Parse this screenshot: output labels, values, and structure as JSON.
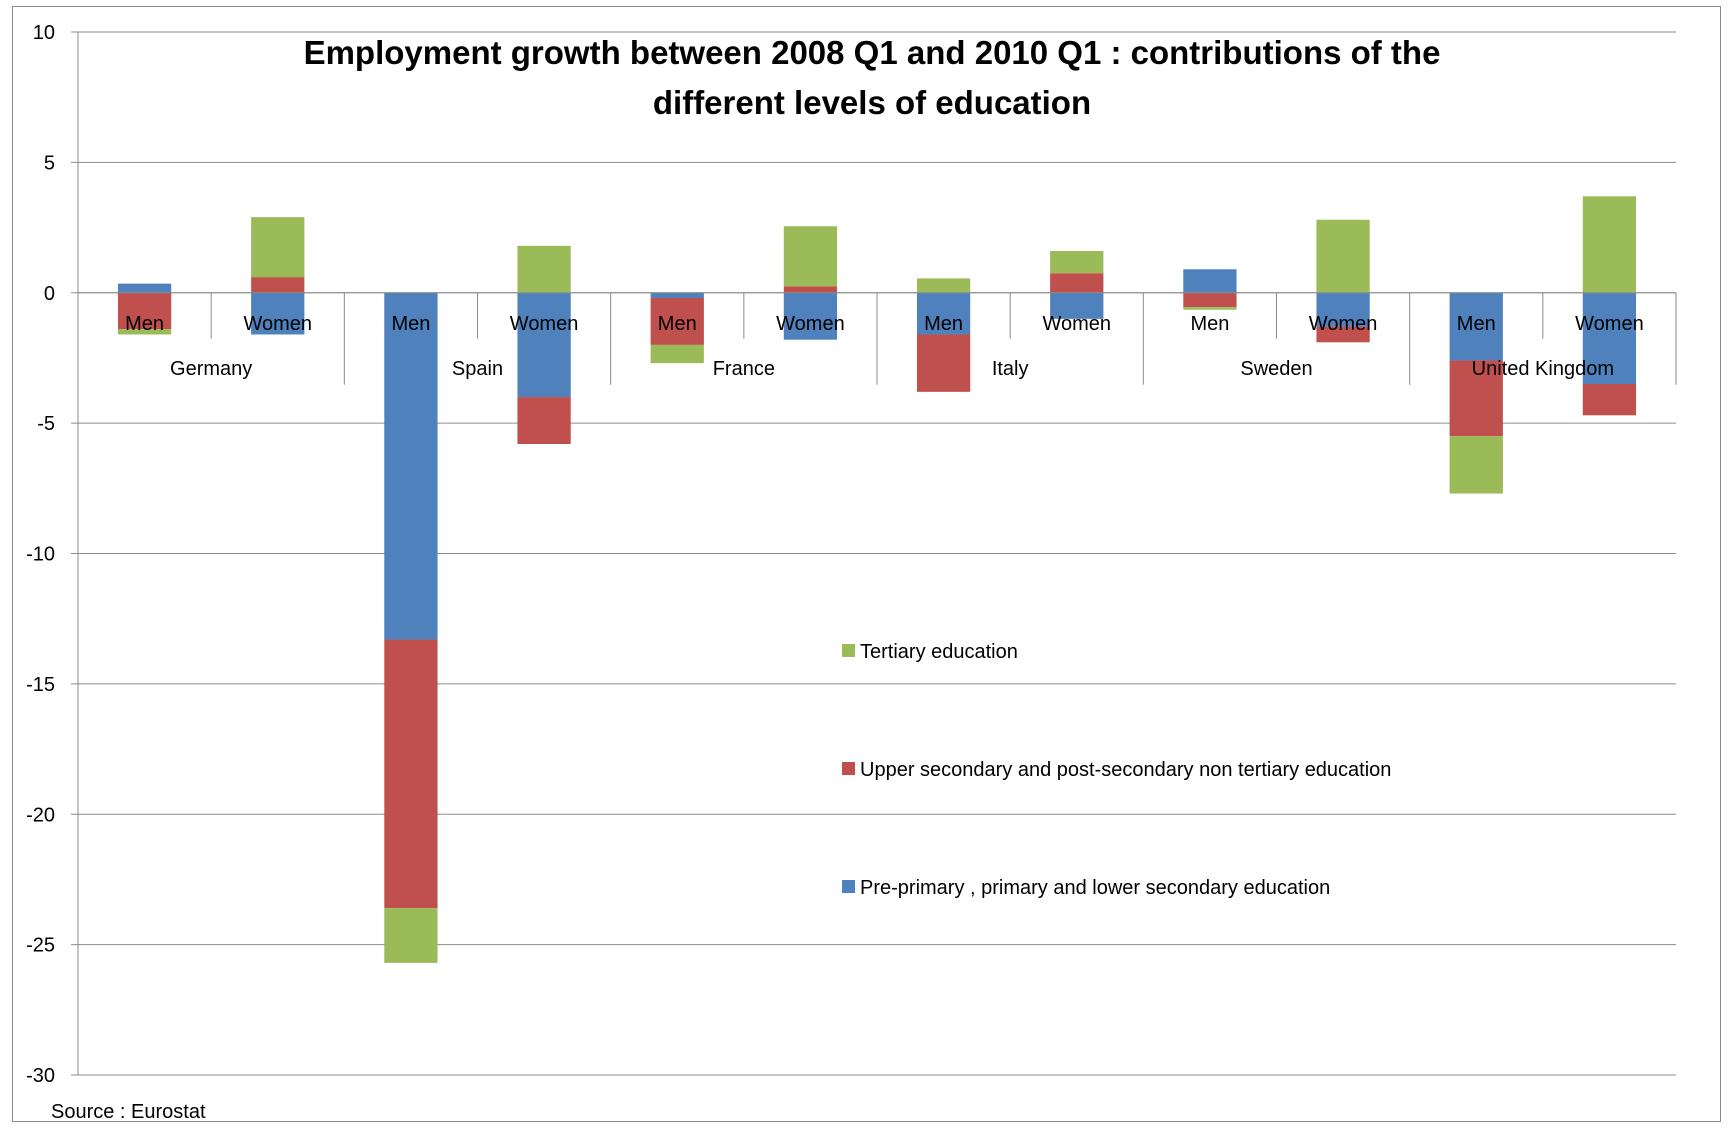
{
  "chart_data": {
    "type": "bar",
    "stacked": true,
    "title_lines": [
      "Employment growth between 2008 Q1 and 2010 Q1 : contributions of the",
      "different levels of education"
    ],
    "groups": [
      "Germany",
      "Spain",
      "France",
      "Italy",
      "Sweden",
      "United Kingdom"
    ],
    "categories": [
      "Men",
      "Women",
      "Men",
      "Women",
      "Men",
      "Women",
      "Men",
      "Women",
      "Men",
      "Women",
      "Men",
      "Women"
    ],
    "series": [
      {
        "name": "Pre-primary , primary and lower secondary education",
        "color": "#4f81bd",
        "values": [
          0.35,
          -1.6,
          -13.3,
          -4.0,
          -0.2,
          -1.8,
          -1.6,
          -1.0,
          0.9,
          -1.3,
          -2.6,
          -3.5
        ]
      },
      {
        "name": "Upper secondary and post-secondary non tertiary education",
        "color": "#c0504d",
        "values": [
          -1.4,
          0.6,
          -10.3,
          -1.8,
          -1.8,
          0.25,
          -2.2,
          0.75,
          -0.55,
          -0.6,
          -2.9,
          -1.2
        ]
      },
      {
        "name": "Tertiary education",
        "color": "#9bbb59",
        "values": [
          -0.2,
          2.3,
          -2.1,
          1.8,
          -0.7,
          2.3,
          0.55,
          0.85,
          -0.1,
          2.8,
          -2.2,
          3.7
        ]
      }
    ],
    "ylim": [
      -30,
      10
    ],
    "yticks": [
      "10",
      "5",
      "0",
      "-5",
      "-10",
      "-15",
      "-20",
      "-25",
      "-30"
    ],
    "ytick_values": [
      10,
      5,
      0,
      -5,
      -10,
      -15,
      -20,
      -25,
      -30
    ],
    "grid": true,
    "legend_position": "center",
    "legend_order": [
      2,
      1,
      0
    ],
    "source": "Source : Eurostat"
  }
}
